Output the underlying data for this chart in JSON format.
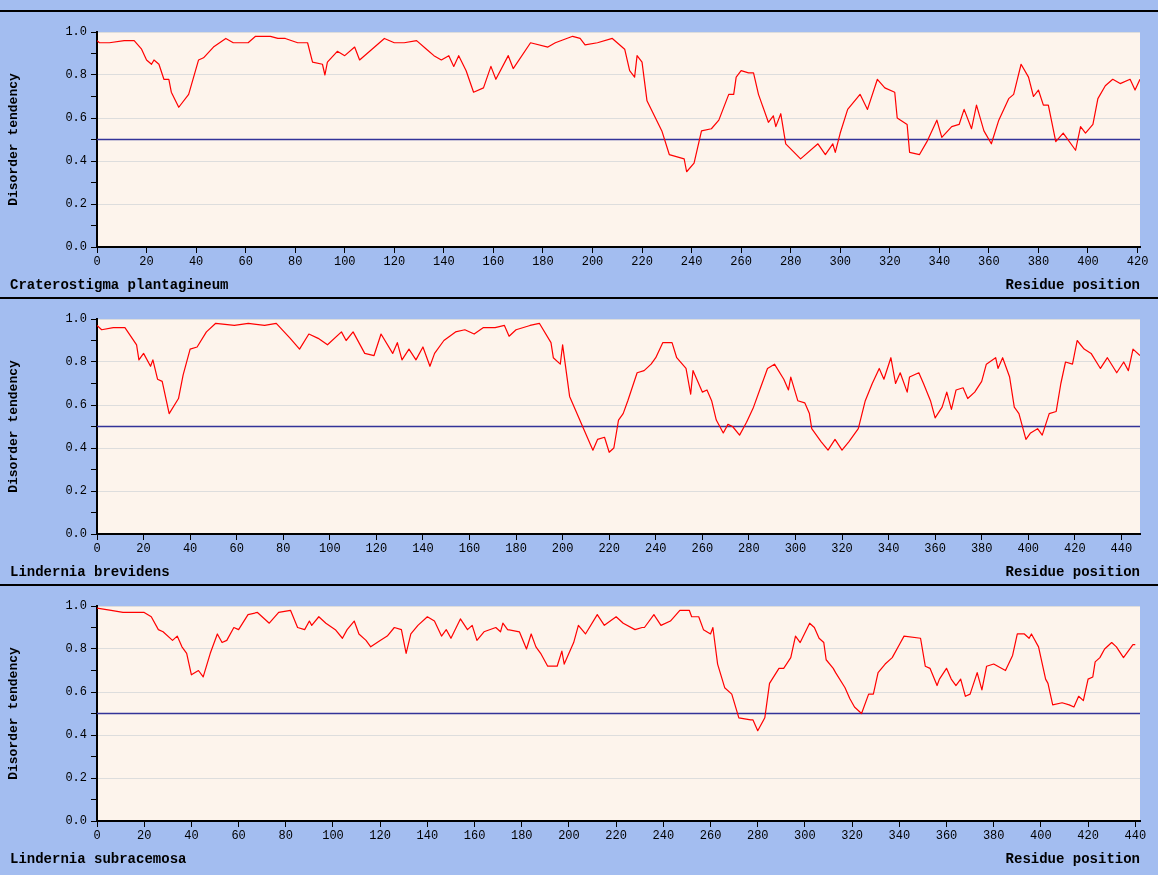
{
  "chart_data": [
    {
      "type": "line",
      "title": "Craterostigma plantagineum",
      "xlabel": "Residue position",
      "ylabel": "Disorder tendency",
      "grid": "y",
      "x": [
        0,
        1,
        5,
        11,
        15,
        18,
        20,
        22,
        23,
        25,
        27,
        29,
        30,
        33,
        37,
        41,
        43,
        47,
        52,
        55,
        61,
        64,
        70,
        73,
        76,
        81,
        85,
        87,
        91,
        92,
        93,
        97,
        100,
        104,
        106,
        111,
        116,
        120,
        124,
        129,
        133,
        136,
        139,
        142,
        144,
        146,
        149,
        152,
        156,
        159,
        161,
        166,
        168,
        175,
        182,
        185,
        192,
        195,
        197,
        202,
        208,
        213,
        215,
        217,
        218,
        220,
        222,
        228,
        231,
        237,
        238,
        241,
        244,
        248,
        251,
        255,
        257,
        258,
        260,
        263,
        265,
        267,
        271,
        273,
        274,
        276,
        278,
        284,
        291,
        294,
        297,
        298,
        300,
        303,
        308,
        311,
        315,
        318,
        322,
        323,
        327,
        328,
        332,
        335,
        339,
        341,
        345,
        348,
        350,
        353,
        355,
        358,
        361,
        364,
        368,
        370,
        373,
        376,
        378,
        380,
        382,
        384,
        387,
        390,
        395,
        397,
        399,
        402,
        404,
        407,
        410,
        413,
        417,
        419,
        421
      ],
      "series": [
        {
          "color": "#ff0000",
          "values": [
            0.96,
            0.95,
            0.95,
            0.96,
            0.96,
            0.92,
            0.87,
            0.85,
            0.87,
            0.85,
            0.78,
            0.78,
            0.72,
            0.65,
            0.71,
            0.87,
            0.88,
            0.93,
            0.97,
            0.95,
            0.95,
            0.98,
            0.98,
            0.97,
            0.97,
            0.95,
            0.95,
            0.86,
            0.85,
            0.8,
            0.86,
            0.91,
            0.89,
            0.93,
            0.87,
            0.92,
            0.97,
            0.95,
            0.95,
            0.96,
            0.92,
            0.89,
            0.87,
            0.89,
            0.84,
            0.89,
            0.82,
            0.72,
            0.74,
            0.84,
            0.78,
            0.89,
            0.83,
            0.95,
            0.93,
            0.95,
            0.98,
            0.97,
            0.94,
            0.95,
            0.97,
            0.92,
            0.82,
            0.79,
            0.89,
            0.86,
            0.68,
            0.54,
            0.43,
            0.41,
            0.35,
            0.39,
            0.54,
            0.55,
            0.59,
            0.71,
            0.71,
            0.79,
            0.82,
            0.81,
            0.81,
            0.71,
            0.58,
            0.61,
            0.56,
            0.62,
            0.48,
            0.41,
            0.48,
            0.43,
            0.48,
            0.44,
            0.53,
            0.64,
            0.71,
            0.64,
            0.78,
            0.74,
            0.72,
            0.6,
            0.57,
            0.44,
            0.43,
            0.49,
            0.59,
            0.51,
            0.56,
            0.57,
            0.64,
            0.55,
            0.66,
            0.54,
            0.48,
            0.59,
            0.69,
            0.71,
            0.85,
            0.79,
            0.7,
            0.73,
            0.66,
            0.66,
            0.49,
            0.53,
            0.45,
            0.56,
            0.53,
            0.57,
            0.69,
            0.75,
            0.78,
            0.76,
            0.78,
            0.73,
            0.78
          ]
        }
      ],
      "xlim": [
        0,
        421
      ],
      "xticks": [
        0,
        20,
        40,
        60,
        80,
        100,
        120,
        140,
        160,
        180,
        200,
        220,
        240,
        260,
        280,
        300,
        320,
        340,
        360,
        380,
        400,
        420
      ],
      "ylim": [
        0,
        1
      ],
      "yticks": [
        {
          "value": 0,
          "label": "0.0"
        },
        {
          "value": 0.1,
          "label": null
        },
        {
          "value": 0.2,
          "label": "0.2"
        },
        {
          "value": 0.3,
          "label": null
        },
        {
          "value": 0.4,
          "label": "0.4"
        },
        {
          "value": 0.5,
          "label": null
        },
        {
          "value": 0.6,
          "label": "0.6"
        },
        {
          "value": 0.7,
          "label": null
        },
        {
          "value": 0.8,
          "label": "0.8"
        },
        {
          "value": 0.9,
          "label": null
        },
        {
          "value": 1,
          "label": "1.0"
        }
      ],
      "ref_lines": [
        {
          "axis": "y",
          "value": 0.5,
          "color": "#333399"
        }
      ]
    },
    {
      "type": "line",
      "title": "Lindernia brevidens",
      "xlabel": "Residue position",
      "ylabel": "Disorder tendency",
      "grid": "y",
      "x": [
        0,
        2,
        7,
        12,
        17,
        18,
        20,
        23,
        24,
        26,
        28,
        31,
        35,
        37,
        40,
        43,
        47,
        51,
        59,
        65,
        72,
        77,
        83,
        87,
        91,
        95,
        99,
        105,
        107,
        110,
        115,
        119,
        122,
        127,
        129,
        131,
        134,
        137,
        140,
        143,
        145,
        149,
        154,
        158,
        162,
        166,
        171,
        175,
        177,
        180,
        186,
        190,
        195,
        196,
        199,
        200,
        203,
        209,
        213,
        215,
        218,
        220,
        222,
        224,
        226,
        228,
        232,
        235,
        238,
        240,
        243,
        247,
        249,
        253,
        255,
        256,
        260,
        262,
        264,
        266,
        269,
        271,
        273,
        276,
        279,
        282,
        285,
        288,
        291,
        295,
        297,
        298,
        301,
        304,
        306,
        307,
        311,
        314,
        317,
        320,
        323,
        327,
        330,
        333,
        336,
        338,
        341,
        343,
        345,
        348,
        349,
        353,
        355,
        358,
        360,
        363,
        365,
        367,
        369,
        372,
        374,
        377,
        380,
        382,
        386,
        387,
        389,
        392,
        394,
        396,
        399,
        401,
        404,
        406,
        409,
        412,
        414,
        416,
        419,
        421,
        424,
        427,
        431,
        434,
        438,
        441,
        443,
        445,
        448
      ],
      "series": [
        {
          "color": "#ff0000",
          "values": [
            0.97,
            0.95,
            0.96,
            0.96,
            0.88,
            0.81,
            0.84,
            0.78,
            0.81,
            0.72,
            0.71,
            0.56,
            0.63,
            0.74,
            0.86,
            0.87,
            0.94,
            0.98,
            0.97,
            0.98,
            0.97,
            0.98,
            0.91,
            0.86,
            0.93,
            0.91,
            0.88,
            0.94,
            0.9,
            0.94,
            0.84,
            0.83,
            0.93,
            0.84,
            0.89,
            0.81,
            0.86,
            0.81,
            0.87,
            0.78,
            0.84,
            0.9,
            0.94,
            0.95,
            0.93,
            0.96,
            0.96,
            0.97,
            0.92,
            0.95,
            0.97,
            0.98,
            0.89,
            0.82,
            0.79,
            0.88,
            0.64,
            0.49,
            0.39,
            0.44,
            0.45,
            0.38,
            0.4,
            0.53,
            0.56,
            0.62,
            0.75,
            0.76,
            0.79,
            0.82,
            0.89,
            0.89,
            0.82,
            0.77,
            0.65,
            0.76,
            0.66,
            0.67,
            0.62,
            0.53,
            0.47,
            0.51,
            0.5,
            0.46,
            0.52,
            0.59,
            0.68,
            0.77,
            0.79,
            0.72,
            0.67,
            0.73,
            0.62,
            0.61,
            0.56,
            0.49,
            0.43,
            0.39,
            0.44,
            0.39,
            0.43,
            0.49,
            0.62,
            0.7,
            0.77,
            0.72,
            0.82,
            0.7,
            0.75,
            0.66,
            0.73,
            0.75,
            0.7,
            0.62,
            0.54,
            0.59,
            0.66,
            0.58,
            0.67,
            0.68,
            0.63,
            0.66,
            0.71,
            0.79,
            0.82,
            0.77,
            0.82,
            0.73,
            0.59,
            0.56,
            0.44,
            0.47,
            0.49,
            0.46,
            0.56,
            0.57,
            0.7,
            0.8,
            0.79,
            0.9,
            0.86,
            0.84,
            0.77,
            0.82,
            0.75,
            0.8,
            0.76,
            0.86,
            0.83
          ]
        }
      ],
      "xlim": [
        0,
        448
      ],
      "xticks": [
        0,
        20,
        40,
        60,
        80,
        100,
        120,
        140,
        160,
        180,
        200,
        220,
        240,
        260,
        280,
        300,
        320,
        340,
        360,
        380,
        400,
        420,
        440
      ],
      "ylim": [
        0,
        1
      ],
      "yticks": [
        {
          "value": 0,
          "label": "0.0"
        },
        {
          "value": 0.1,
          "label": null
        },
        {
          "value": 0.2,
          "label": "0.2"
        },
        {
          "value": 0.3,
          "label": null
        },
        {
          "value": 0.4,
          "label": "0.4"
        },
        {
          "value": 0.5,
          "label": null
        },
        {
          "value": 0.6,
          "label": "0.6"
        },
        {
          "value": 0.7,
          "label": null
        },
        {
          "value": 0.8,
          "label": "0.8"
        },
        {
          "value": 0.9,
          "label": null
        },
        {
          "value": 1,
          "label": "1.0"
        }
      ],
      "ref_lines": [
        {
          "axis": "y",
          "value": 0.5,
          "color": "#333399"
        }
      ]
    },
    {
      "type": "line",
      "title": "Lindernia subracemosa",
      "xlabel": "Residue position",
      "ylabel": "Disorder tendency",
      "grid": "y",
      "x": [
        0,
        6,
        11,
        20,
        23,
        26,
        28,
        32,
        34,
        36,
        38,
        40,
        43,
        45,
        48,
        51,
        53,
        55,
        58,
        60,
        64,
        68,
        73,
        77,
        82,
        85,
        88,
        90,
        91,
        94,
        97,
        101,
        104,
        106,
        109,
        111,
        114,
        116,
        120,
        123,
        126,
        129,
        131,
        133,
        136,
        140,
        143,
        146,
        148,
        150,
        154,
        157,
        159,
        161,
        164,
        169,
        171,
        172,
        174,
        179,
        182,
        184,
        186,
        188,
        191,
        195,
        197,
        198,
        202,
        204,
        207,
        212,
        215,
        220,
        223,
        228,
        231,
        232,
        236,
        239,
        243,
        247,
        251,
        252,
        255,
        257,
        260,
        261,
        263,
        266,
        269,
        272,
        277,
        278,
        280,
        283,
        285,
        289,
        291,
        294,
        296,
        298,
        302,
        304,
        306,
        308,
        309,
        312,
        313,
        317,
        319,
        321,
        324,
        327,
        329,
        331,
        334,
        337,
        340,
        342,
        349,
        351,
        353,
        356,
        357,
        360,
        362,
        364,
        366,
        368,
        370,
        373,
        375,
        377,
        380,
        385,
        388,
        390,
        393,
        395,
        396,
        399,
        402,
        403,
        405,
        409,
        412,
        414,
        416,
        418,
        420,
        422,
        423,
        425,
        427,
        430,
        432,
        435,
        439,
        440
      ],
      "series": [
        {
          "color": "#ff0000",
          "values": [
            0.99,
            0.98,
            0.97,
            0.97,
            0.95,
            0.89,
            0.88,
            0.84,
            0.86,
            0.81,
            0.78,
            0.68,
            0.7,
            0.67,
            0.78,
            0.87,
            0.83,
            0.84,
            0.9,
            0.89,
            0.96,
            0.97,
            0.92,
            0.97,
            0.98,
            0.9,
            0.89,
            0.93,
            0.91,
            0.95,
            0.92,
            0.89,
            0.85,
            0.89,
            0.93,
            0.87,
            0.84,
            0.81,
            0.84,
            0.86,
            0.9,
            0.89,
            0.78,
            0.87,
            0.91,
            0.95,
            0.93,
            0.86,
            0.89,
            0.85,
            0.94,
            0.89,
            0.91,
            0.84,
            0.88,
            0.9,
            0.88,
            0.92,
            0.89,
            0.88,
            0.8,
            0.87,
            0.81,
            0.78,
            0.72,
            0.72,
            0.79,
            0.73,
            0.83,
            0.91,
            0.87,
            0.96,
            0.91,
            0.95,
            0.92,
            0.89,
            0.9,
            0.9,
            0.96,
            0.91,
            0.93,
            0.98,
            0.98,
            0.95,
            0.95,
            0.89,
            0.87,
            0.9,
            0.73,
            0.62,
            0.59,
            0.48,
            0.47,
            0.47,
            0.42,
            0.48,
            0.64,
            0.71,
            0.71,
            0.76,
            0.86,
            0.83,
            0.92,
            0.9,
            0.85,
            0.83,
            0.75,
            0.71,
            0.69,
            0.62,
            0.57,
            0.53,
            0.5,
            0.59,
            0.59,
            0.69,
            0.73,
            0.76,
            0.82,
            0.86,
            0.85,
            0.72,
            0.71,
            0.63,
            0.66,
            0.71,
            0.66,
            0.63,
            0.66,
            0.58,
            0.59,
            0.69,
            0.61,
            0.72,
            0.73,
            0.7,
            0.77,
            0.87,
            0.87,
            0.85,
            0.87,
            0.81,
            0.66,
            0.64,
            0.54,
            0.55,
            0.54,
            0.53,
            0.58,
            0.56,
            0.66,
            0.67,
            0.74,
            0.76,
            0.8,
            0.83,
            0.81,
            0.76,
            0.82,
            0.82
          ]
        }
      ],
      "xlim": [
        0,
        442
      ],
      "xticks": [
        0,
        20,
        40,
        60,
        80,
        100,
        120,
        140,
        160,
        180,
        200,
        220,
        240,
        260,
        280,
        300,
        320,
        340,
        360,
        380,
        400,
        420,
        440
      ],
      "ylim": [
        0,
        1
      ],
      "yticks": [
        {
          "value": 0,
          "label": "0.0"
        },
        {
          "value": 0.1,
          "label": null
        },
        {
          "value": 0.2,
          "label": "0.2"
        },
        {
          "value": 0.3,
          "label": null
        },
        {
          "value": 0.4,
          "label": "0.4"
        },
        {
          "value": 0.5,
          "label": null
        },
        {
          "value": 0.6,
          "label": "0.6"
        },
        {
          "value": 0.7,
          "label": null
        },
        {
          "value": 0.8,
          "label": "0.8"
        },
        {
          "value": 0.9,
          "label": null
        },
        {
          "value": 1,
          "label": "1.0"
        }
      ],
      "ref_lines": [
        {
          "axis": "y",
          "value": 0.5,
          "color": "#333399"
        }
      ]
    }
  ]
}
